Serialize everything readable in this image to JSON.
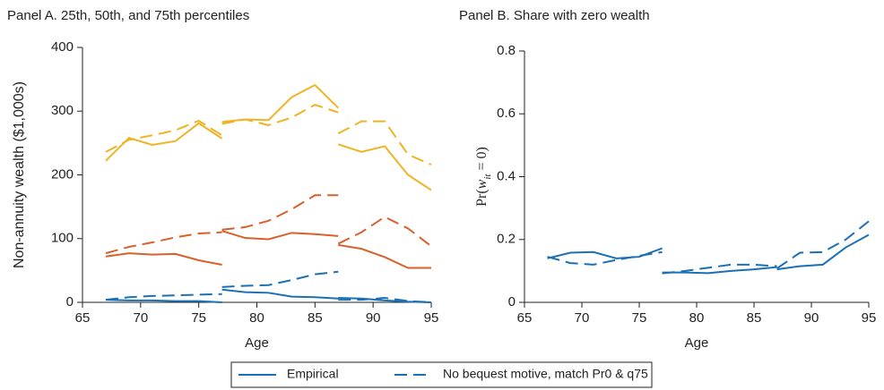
{
  "chart_data": [
    {
      "type": "line",
      "title": "Panel A. 25th, 50th, and 75th percentiles",
      "xlabel": "Age",
      "ylabel": "Non-annuity wealth ($1,000s)",
      "x": [
        67,
        69,
        71,
        73,
        75,
        77,
        null,
        77,
        79,
        81,
        83,
        85,
        87,
        null,
        87,
        89,
        91,
        93,
        95
      ],
      "xlim": [
        65,
        95
      ],
      "xticks": [
        65,
        70,
        75,
        80,
        85,
        90,
        95
      ],
      "ylim": [
        0,
        400
      ],
      "yticks": [
        0,
        100,
        200,
        300,
        400
      ],
      "series": [
        {
          "color": "#f0b323",
          "dash": false,
          "values": [
            222,
            258,
            247,
            253,
            281,
            257,
            null,
            283,
            287,
            286,
            322,
            341,
            305,
            null,
            248,
            236,
            245,
            200,
            176
          ]
        },
        {
          "color": "#f0b323",
          "dash": true,
          "values": [
            236,
            255,
            262,
            270,
            285,
            262,
            null,
            280,
            287,
            278,
            290,
            310,
            298,
            null,
            265,
            284,
            284,
            232,
            216
          ]
        },
        {
          "color": "#d95f2b",
          "dash": false,
          "values": [
            72,
            77,
            75,
            76,
            66,
            59,
            null,
            112,
            101,
            99,
            109,
            107,
            104,
            null,
            90,
            84,
            71,
            54,
            54
          ]
        },
        {
          "color": "#d95f2b",
          "dash": true,
          "values": [
            77,
            87,
            94,
            102,
            108,
            110,
            null,
            114,
            118,
            128,
            146,
            168,
            168,
            null,
            92,
            110,
            134,
            116,
            88
          ]
        },
        {
          "color": "#1b6fb5",
          "dash": false,
          "values": [
            4,
            3,
            3,
            2,
            2,
            0,
            null,
            20,
            16,
            15,
            9,
            8,
            6,
            null,
            7,
            6,
            3,
            1,
            0
          ]
        },
        {
          "color": "#1b6fb5",
          "dash": true,
          "values": [
            4,
            8,
            10,
            11,
            12,
            13,
            null,
            24,
            26,
            27,
            35,
            44,
            48,
            null,
            4,
            4,
            7,
            2,
            0
          ]
        }
      ]
    },
    {
      "type": "line",
      "title": "Panel B. Share with zero wealth",
      "xlabel": "Age",
      "ylabel": [
        "Pr(",
        "w",
        "it",
        " = 0)"
      ],
      "x": [
        67,
        69,
        71,
        73,
        75,
        77,
        null,
        77,
        79,
        81,
        83,
        85,
        87,
        null,
        87,
        89,
        91,
        93,
        95
      ],
      "xlim": [
        65,
        95
      ],
      "xticks": [
        65,
        70,
        75,
        80,
        85,
        90,
        95
      ],
      "ylim": [
        0,
        0.8
      ],
      "yticks": [
        0,
        0.2,
        0.4,
        0.6,
        0.8
      ],
      "series": [
        {
          "color": "#1b6fb5",
          "dash": false,
          "values": [
            0.14,
            0.158,
            0.16,
            0.14,
            0.145,
            0.172,
            null,
            0.095,
            0.095,
            0.093,
            0.1,
            0.105,
            0.112,
            null,
            0.105,
            0.115,
            0.12,
            0.175,
            0.215
          ]
        },
        {
          "color": "#1b6fb5",
          "dash": true,
          "values": [
            0.145,
            0.125,
            0.12,
            0.135,
            0.148,
            0.16,
            null,
            0.092,
            0.1,
            0.11,
            0.12,
            0.12,
            0.115,
            null,
            0.108,
            0.158,
            0.16,
            0.2,
            0.258
          ]
        }
      ]
    }
  ],
  "legend": {
    "color": "#1b6fb5",
    "items": [
      {
        "name": "Empirical",
        "dash": false
      },
      {
        "name": "No bequest motive, match Pr0 & q75",
        "dash": true
      }
    ]
  }
}
